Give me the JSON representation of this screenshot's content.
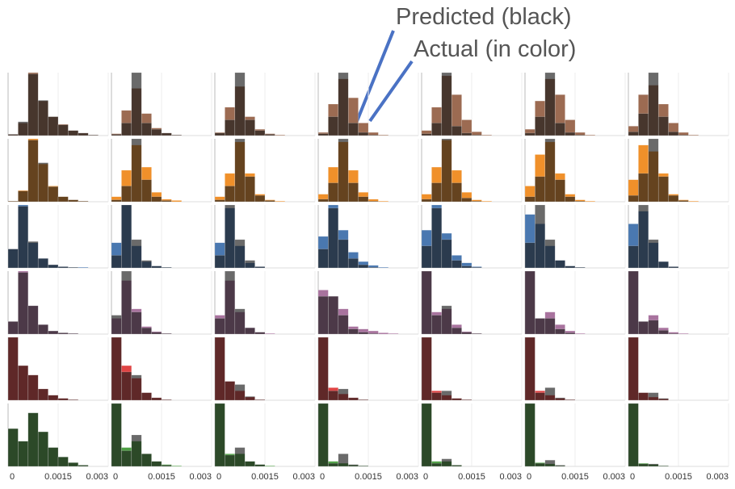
{
  "annotations": [
    "Predicted (black)",
    "Actual (in color)"
  ],
  "chart_data": {
    "type": "histogram",
    "bins": [
      0,
      0.0003,
      0.0006,
      0.0009,
      0.0012,
      0.0015,
      0.0018,
      0.0021,
      0.0024,
      0.0027,
      0.003
    ],
    "xlim": [
      0,
      0.003
    ],
    "xticks": [
      0,
      0.0015,
      0.003
    ],
    "ylim": [
      0,
      100
    ],
    "grid": true,
    "predicted_color": "#1a1a1a",
    "rows": [
      {
        "color": "#9c6b52",
        "panels": [
          {
            "actual": [
              2,
              20,
              100,
              55,
              30,
              18,
              8,
              4,
              1,
              0
            ],
            "predicted": [
              2,
              22,
              98,
              56,
              30,
              17,
              8,
              4,
              1,
              0
            ]
          },
          {
            "actual": [
              3,
              40,
              75,
              35,
              12,
              4,
              1,
              0,
              0,
              0
            ],
            "predicted": [
              2,
              20,
              100,
              20,
              10,
              4,
              1,
              0,
              0,
              0
            ]
          },
          {
            "actual": [
              5,
              45,
              78,
              30,
              10,
              3,
              1,
              0,
              0,
              0
            ],
            "predicted": [
              4,
              25,
              100,
              25,
              8,
              2,
              0,
              0,
              0,
              0
            ]
          },
          {
            "actual": [
              5,
              50,
              90,
              60,
              20,
              5,
              1,
              0,
              0,
              0
            ],
            "predicted": [
              3,
              30,
              100,
              20,
              5,
              1,
              0,
              0,
              0,
              0
            ]
          },
          {
            "actual": [
              8,
              45,
              95,
              65,
              25,
              6,
              1,
              0,
              0,
              0
            ],
            "predicted": [
              3,
              20,
              100,
              15,
              4,
              1,
              0,
              0,
              0,
              0
            ]
          },
          {
            "actual": [
              10,
              55,
              90,
              65,
              25,
              5,
              1,
              0,
              0,
              0
            ],
            "predicted": [
              4,
              30,
              100,
              20,
              5,
              1,
              0,
              0,
              0,
              0
            ]
          },
          {
            "actual": [
              15,
              65,
              80,
              50,
              20,
              5,
              1,
              0,
              0,
              0
            ],
            "predicted": [
              6,
              35,
              100,
              30,
              6,
              1,
              0,
              0,
              0,
              0
            ]
          }
        ]
      },
      {
        "color": "#f0902a",
        "panels": [
          {
            "actual": [
              1,
              18,
              100,
              60,
              25,
              8,
              3,
              1,
              0,
              0
            ],
            "predicted": [
              1,
              17,
              98,
              62,
              24,
              8,
              3,
              1,
              0,
              0
            ]
          },
          {
            "actual": [
              8,
              50,
              90,
              55,
              15,
              4,
              2,
              0,
              0,
              0
            ],
            "predicted": [
              3,
              25,
              100,
              35,
              8,
              2,
              0,
              0,
              0,
              0
            ]
          },
          {
            "actual": [
              8,
              45,
              95,
              45,
              12,
              3,
              1,
              0,
              0,
              0
            ],
            "predicted": [
              3,
              25,
              100,
              40,
              10,
              2,
              0,
              0,
              0,
              0
            ]
          },
          {
            "actual": [
              12,
              55,
              95,
              50,
              15,
              4,
              1,
              0,
              0,
              0
            ],
            "predicted": [
              4,
              30,
              100,
              30,
              8,
              1,
              0,
              0,
              0,
              0
            ]
          },
          {
            "actual": [
              12,
              55,
              98,
              50,
              15,
              3,
              1,
              0,
              0,
              0
            ],
            "predicted": [
              4,
              30,
              100,
              30,
              6,
              1,
              0,
              0,
              0,
              0
            ]
          },
          {
            "actual": [
              25,
              75,
              95,
              45,
              12,
              3,
              1,
              0,
              0,
              0
            ],
            "predicted": [
              8,
              40,
              100,
              35,
              8,
              1,
              0,
              0,
              0,
              0
            ]
          },
          {
            "actual": [
              35,
              90,
              80,
              45,
              12,
              3,
              1,
              0,
              0,
              0
            ],
            "predicted": [
              10,
              45,
              100,
              40,
              10,
              2,
              0,
              0,
              0,
              0
            ]
          }
        ]
      },
      {
        "color": "#4a78b0",
        "panels": [
          {
            "actual": [
              30,
              100,
              40,
              15,
              5,
              2,
              1,
              1,
              0,
              0
            ],
            "predicted": [
              30,
              98,
              42,
              15,
              5,
              2,
              1,
              0,
              0,
              0
            ]
          },
          {
            "actual": [
              40,
              100,
              35,
              10,
              3,
              1,
              0,
              0,
              0,
              0
            ],
            "predicted": [
              20,
              100,
              45,
              12,
              3,
              1,
              0,
              0,
              0,
              0
            ]
          },
          {
            "actual": [
              40,
              95,
              35,
              8,
              2,
              0,
              0,
              0,
              0,
              0
            ],
            "predicted": [
              20,
              100,
              45,
              12,
              2,
              0,
              0,
              0,
              0,
              0
            ]
          },
          {
            "actual": [
              50,
              100,
              60,
              25,
              10,
              4,
              1,
              0,
              0,
              0
            ],
            "predicted": [
              30,
              95,
              45,
              15,
              5,
              1,
              0,
              0,
              0,
              0
            ]
          },
          {
            "actual": [
              60,
              100,
              55,
              20,
              8,
              2,
              0,
              0,
              0,
              0
            ],
            "predicted": [
              35,
              95,
              45,
              12,
              3,
              1,
              0,
              0,
              0,
              0
            ]
          },
          {
            "actual": [
              85,
              70,
              35,
              12,
              3,
              1,
              0,
              0,
              0,
              0
            ],
            "predicted": [
              40,
              100,
              45,
              12,
              3,
              1,
              0,
              0,
              0,
              0
            ]
          },
          {
            "actual": [
              70,
              90,
              40,
              10,
              2,
              0,
              0,
              0,
              0,
              0
            ],
            "predicted": [
              35,
              100,
              45,
              10,
              2,
              0,
              0,
              0,
              0,
              0
            ]
          }
        ]
      },
      {
        "color": "#a8739e",
        "panels": [
          {
            "actual": [
              20,
              100,
              45,
              15,
              5,
              2,
              1,
              0,
              0,
              0
            ],
            "predicted": [
              20,
              98,
              45,
              15,
              5,
              2,
              1,
              0,
              0,
              0
            ]
          },
          {
            "actual": [
              25,
              85,
              40,
              12,
              4,
              1,
              0,
              0,
              0,
              0
            ],
            "predicted": [
              30,
              100,
              35,
              10,
              3,
              1,
              0,
              0,
              0,
              0
            ]
          },
          {
            "actual": [
              30,
              85,
              35,
              10,
              3,
              1,
              0,
              0,
              0,
              0
            ],
            "predicted": [
              25,
              100,
              40,
              10,
              3,
              0,
              0,
              0,
              0,
              0
            ]
          },
          {
            "actual": [
              70,
              60,
              40,
              12,
              8,
              5,
              2,
              1,
              0,
              0
            ],
            "predicted": [
              60,
              60,
              30,
              8,
              3,
              1,
              0,
              0,
              0,
              0
            ]
          },
          {
            "actual": [
              100,
              35,
              40,
              15,
              4,
              1,
              0,
              0,
              0,
              0
            ],
            "predicted": [
              100,
              30,
              45,
              10,
              3,
              1,
              0,
              0,
              0,
              0
            ]
          },
          {
            "actual": [
              100,
              25,
              35,
              15,
              5,
              1,
              0,
              0,
              0,
              0
            ],
            "predicted": [
              100,
              25,
              25,
              8,
              2,
              0,
              0,
              0,
              0,
              0
            ]
          },
          {
            "actual": [
              100,
              20,
              30,
              10,
              3,
              1,
              0,
              0,
              0,
              0
            ],
            "predicted": [
              100,
              20,
              22,
              6,
              1,
              0,
              0,
              0,
              0,
              0
            ]
          }
        ]
      },
      {
        "color": "#e04444",
        "panels": [
          {
            "actual": [
              100,
              55,
              40,
              18,
              8,
              3,
              1,
              0,
              0,
              0
            ],
            "predicted": [
              100,
              55,
              40,
              18,
              8,
              3,
              1,
              0,
              0,
              0
            ]
          },
          {
            "actual": [
              100,
              55,
              35,
              12,
              4,
              1,
              0,
              0,
              0,
              0
            ],
            "predicted": [
              100,
              45,
              40,
              12,
              4,
              1,
              0,
              0,
              0,
              0
            ]
          },
          {
            "actual": [
              100,
              30,
              15,
              5,
              1,
              0,
              0,
              0,
              0,
              0
            ],
            "predicted": [
              100,
              30,
              25,
              6,
              1,
              0,
              0,
              0,
              0,
              0
            ]
          },
          {
            "actual": [
              100,
              20,
              10,
              4,
              1,
              0,
              0,
              0,
              0,
              0
            ],
            "predicted": [
              100,
              15,
              18,
              4,
              1,
              0,
              0,
              0,
              0,
              0
            ]
          },
          {
            "actual": [
              100,
              15,
              8,
              3,
              1,
              0,
              0,
              0,
              0,
              0
            ],
            "predicted": [
              100,
              12,
              15,
              3,
              1,
              0,
              0,
              0,
              0,
              0
            ]
          },
          {
            "actual": [
              100,
              15,
              8,
              3,
              1,
              0,
              0,
              0,
              0,
              0
            ],
            "predicted": [
              100,
              12,
              20,
              4,
              1,
              0,
              0,
              0,
              0,
              0
            ]
          },
          {
            "actual": [
              100,
              12,
              5,
              2,
              0,
              0,
              0,
              0,
              0,
              0
            ],
            "predicted": [
              100,
              12,
              12,
              3,
              0,
              0,
              0,
              0,
              0,
              0
            ]
          }
        ]
      },
      {
        "color": "#4ea044",
        "panels": [
          {
            "actual": [
              60,
              40,
              85,
              55,
              30,
              15,
              6,
              2,
              0,
              0
            ],
            "predicted": [
              60,
              40,
              85,
              55,
              30,
              15,
              6,
              2,
              0,
              0
            ]
          },
          {
            "actual": [
              100,
              30,
              40,
              20,
              8,
              3,
              1,
              0,
              0,
              0
            ],
            "predicted": [
              100,
              25,
              50,
              20,
              8,
              2,
              0,
              0,
              0,
              0
            ]
          },
          {
            "actual": [
              100,
              20,
              20,
              8,
              3,
              1,
              0,
              0,
              0,
              0
            ],
            "predicted": [
              100,
              18,
              30,
              8,
              3,
              0,
              0,
              0,
              0,
              0
            ]
          },
          {
            "actual": [
              100,
              8,
              5,
              2,
              1,
              0,
              0,
              0,
              0,
              0
            ],
            "predicted": [
              100,
              5,
              20,
              3,
              1,
              0,
              0,
              0,
              0,
              0
            ]
          },
          {
            "actual": [
              100,
              8,
              8,
              2,
              0,
              0,
              0,
              0,
              0,
              0
            ],
            "predicted": [
              100,
              5,
              12,
              2,
              0,
              0,
              0,
              0,
              0,
              0
            ]
          },
          {
            "actual": [
              100,
              6,
              4,
              1,
              0,
              0,
              0,
              0,
              0,
              0
            ],
            "predicted": [
              100,
              5,
              10,
              2,
              0,
              0,
              0,
              0,
              0,
              0
            ]
          },
          {
            "actual": [
              100,
              5,
              3,
              1,
              0,
              0,
              0,
              0,
              0,
              0
            ],
            "predicted": [
              100,
              4,
              4,
              1,
              0,
              0,
              0,
              0,
              0,
              0
            ]
          }
        ]
      }
    ]
  }
}
